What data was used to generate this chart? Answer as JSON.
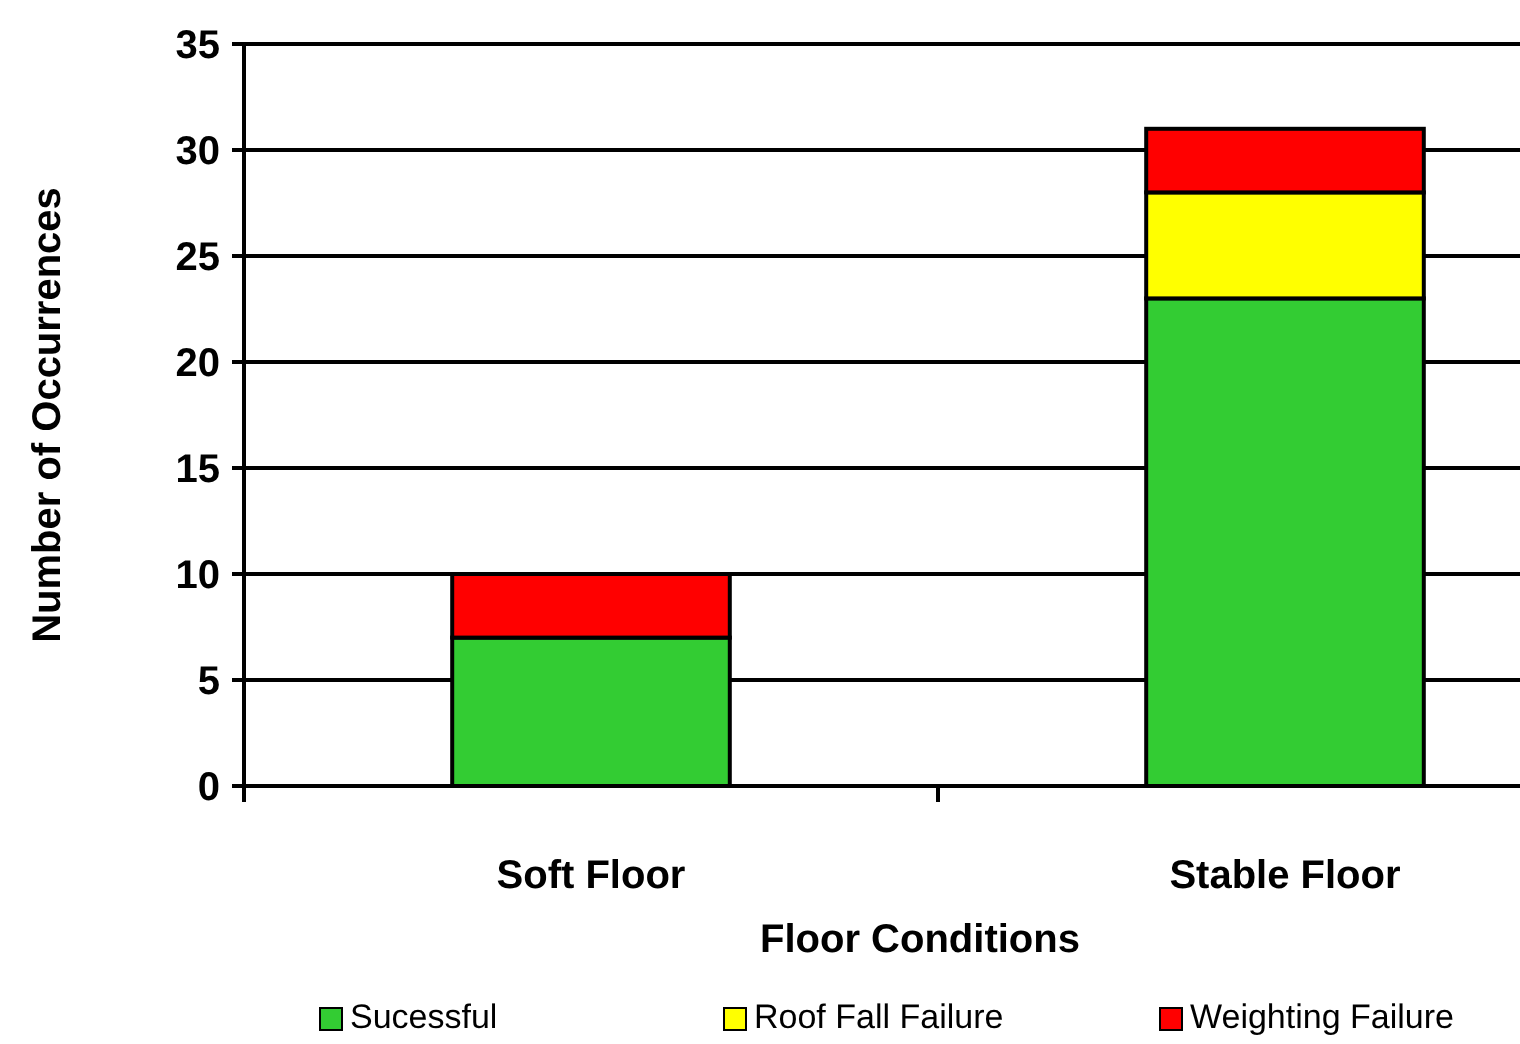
{
  "chart_data": {
    "type": "bar",
    "stacked": true,
    "xlabel": "Floor Conditions",
    "ylabel": "Number of Occurrences",
    "categories": [
      "Soft Floor",
      "Stable Floor"
    ],
    "series": [
      {
        "name": "Sucessful",
        "color": "#33cc33",
        "values": [
          7,
          23
        ]
      },
      {
        "name": "Roof Fall Failure",
        "color": "#ffff00",
        "values": [
          0,
          5
        ]
      },
      {
        "name": "Weighting Failure",
        "color": "#ff0000",
        "values": [
          3,
          3
        ]
      }
    ],
    "ylim": [
      0,
      35
    ],
    "yticks": [
      0,
      5,
      10,
      15,
      20,
      25,
      30,
      35
    ],
    "grid": "y",
    "legend": "bottom"
  }
}
